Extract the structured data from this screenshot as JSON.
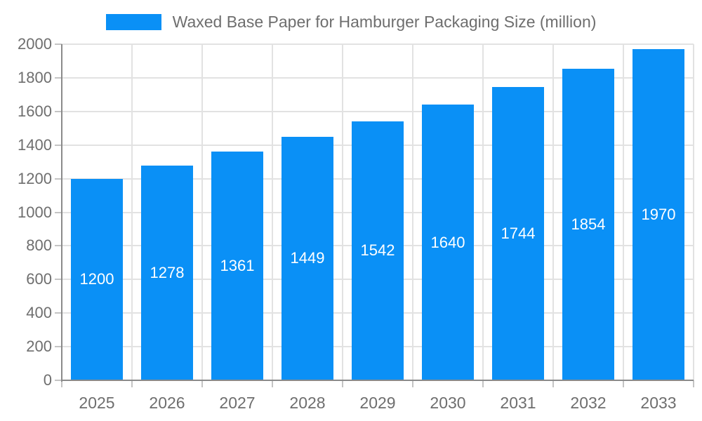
{
  "chart_data": {
    "type": "bar",
    "title": "Waxed Base Paper for Hamburger Packaging Size (million)",
    "legend_label": "Waxed Base Paper for Hamburger Packaging Size (million)",
    "legend_position": "top",
    "categories": [
      "2025",
      "2026",
      "2027",
      "2028",
      "2029",
      "2030",
      "2031",
      "2032",
      "2033"
    ],
    "values": [
      1200,
      1278,
      1361,
      1449,
      1542,
      1640,
      1744,
      1854,
      1970
    ],
    "xlabel": "",
    "ylabel": "",
    "ylim": [
      0,
      2000
    ],
    "ytick_step": 200,
    "grid": true,
    "value_label_position": "inside-center",
    "colors": {
      "bar": "#0a90f6",
      "grid": "#e2e2e2",
      "axis": "#8a8a8a",
      "tick": "#c4c4c4",
      "label_text": "#6e6e6e",
      "value_text": "#ffffff",
      "background": "#ffffff"
    }
  }
}
